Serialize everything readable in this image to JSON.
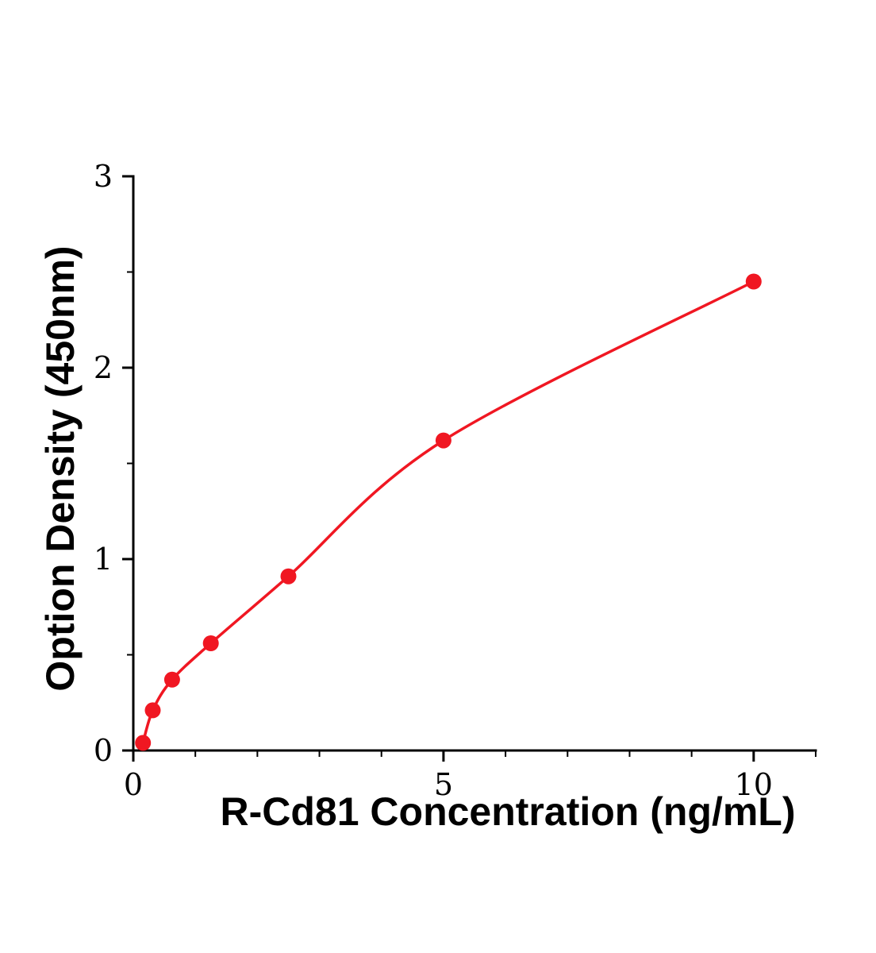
{
  "chart_data": {
    "type": "scatter",
    "title": "",
    "xlabel": "R-Cd81 Concentration (ng/mL)",
    "ylabel": "Option Density (450nm)",
    "x": [
      0.156,
      0.313,
      0.625,
      1.25,
      2.5,
      5,
      10
    ],
    "y": [
      0.04,
      0.21,
      0.37,
      0.56,
      0.91,
      1.62,
      2.45
    ],
    "xlim": [
      0,
      11
    ],
    "ylim": [
      0,
      3
    ],
    "xticks": [
      0,
      5,
      10
    ],
    "yticks": [
      0,
      1,
      2,
      3
    ],
    "xticks_minor": [
      1,
      2,
      3,
      4,
      6,
      7,
      8,
      9,
      11
    ],
    "yticks_minor": [
      0.5,
      1.5,
      2.5
    ],
    "grid": false,
    "legend": null,
    "marker_color": "#f01722",
    "line_color": "#f01722",
    "axis_color": "#000000"
  }
}
